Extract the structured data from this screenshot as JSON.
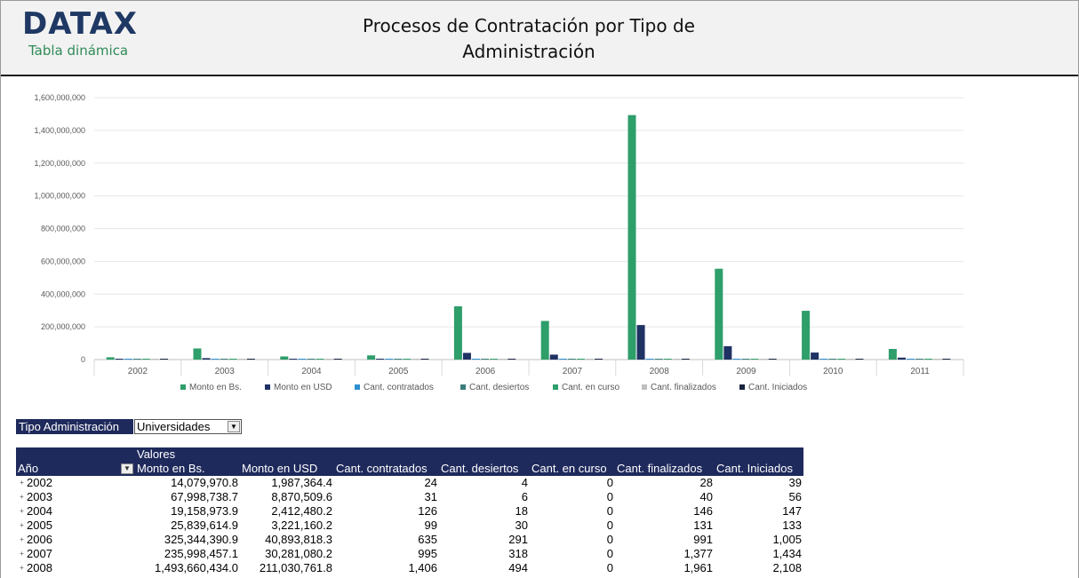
{
  "header": {
    "logo": "DATAX",
    "logo_sub": "Tabla dinámica",
    "title_line1": "Procesos de Contratación por Tipo de",
    "title_line2": "Administración"
  },
  "filter": {
    "label": "Tipo Administración",
    "value": "Universidades",
    "button_icon": "filter-dropdown-icon"
  },
  "pivot": {
    "values_label": "Valores",
    "row_header": "Año",
    "columns": [
      "Monto en Bs.",
      "Monto en USD",
      "Cant. contratados",
      "Cant. desiertos",
      "Cant. en curso",
      "Cant. finalizados",
      "Cant. Iniciados"
    ],
    "rows": [
      {
        "year": "2002",
        "cells": [
          "14,079,970.8",
          "1,987,364.4",
          "24",
          "4",
          "0",
          "28",
          "39"
        ]
      },
      {
        "year": "2003",
        "cells": [
          "67,998,738.7",
          "8,870,509.6",
          "31",
          "6",
          "0",
          "40",
          "56"
        ]
      },
      {
        "year": "2004",
        "cells": [
          "19,158,973.9",
          "2,412,480.2",
          "126",
          "18",
          "0",
          "146",
          "147"
        ]
      },
      {
        "year": "2005",
        "cells": [
          "25,839,614.9",
          "3,221,160.2",
          "99",
          "30",
          "0",
          "131",
          "133"
        ]
      },
      {
        "year": "2006",
        "cells": [
          "325,344,390.9",
          "40,893,818.3",
          "635",
          "291",
          "0",
          "991",
          "1,005"
        ]
      },
      {
        "year": "2007",
        "cells": [
          "235,998,457.1",
          "30,281,080.2",
          "995",
          "318",
          "0",
          "1,377",
          "1,434"
        ]
      },
      {
        "year": "2008",
        "cells": [
          "1,493,660,434.0",
          "211,030,761.8",
          "1,406",
          "494",
          "0",
          "1,961",
          "2,108"
        ]
      }
    ]
  },
  "chart_data": {
    "type": "bar",
    "title": "",
    "xlabel": "",
    "ylabel": "",
    "ylim": [
      0,
      1600000000
    ],
    "yticks": [
      "0",
      "200,000,000",
      "400,000,000",
      "600,000,000",
      "800,000,000",
      "1,000,000,000",
      "1,200,000,000",
      "1,400,000,000",
      "1,600,000,000"
    ],
    "categories": [
      "2002",
      "2003",
      "2004",
      "2005",
      "2006",
      "2007",
      "2008",
      "2009",
      "2010",
      "2011"
    ],
    "grid": true,
    "legend_position": "bottom",
    "series": [
      {
        "name": "Monto en Bs.",
        "color": "#2e9e6a",
        "values": [
          14079970.8,
          67998738.7,
          19158973.9,
          25839614.9,
          325344390.9,
          235998457.1,
          1493660434.0,
          555000000,
          298000000,
          65000000
        ]
      },
      {
        "name": "Monto en USD",
        "color": "#1f3264",
        "values": [
          1987364.4,
          8870509.6,
          2412480.2,
          3221160.2,
          40893818.3,
          30281080.2,
          211030761.8,
          82000000,
          43000000,
          12000000
        ]
      },
      {
        "name": "Cant. contratados",
        "color": "#2e8fd0",
        "values": [
          24,
          31,
          126,
          99,
          635,
          995,
          1406,
          1100,
          900,
          300
        ]
      },
      {
        "name": "Cant. desiertos",
        "color": "#3a7d7a",
        "values": [
          4,
          6,
          18,
          30,
          291,
          318,
          494,
          400,
          350,
          120
        ]
      },
      {
        "name": "Cant. en curso",
        "color": "#2e9e6a",
        "values": [
          0,
          0,
          0,
          0,
          0,
          0,
          0,
          0,
          0,
          0
        ]
      },
      {
        "name": "Cant. finalizados",
        "color": "#bfbfbf",
        "values": [
          28,
          40,
          146,
          131,
          991,
          1377,
          1961,
          1600,
          1300,
          450
        ]
      },
      {
        "name": "Cant. Iniciados",
        "color": "#1a2340",
        "values": [
          39,
          56,
          147,
          133,
          1005,
          1434,
          2108,
          1700,
          1400,
          480
        ]
      }
    ]
  }
}
